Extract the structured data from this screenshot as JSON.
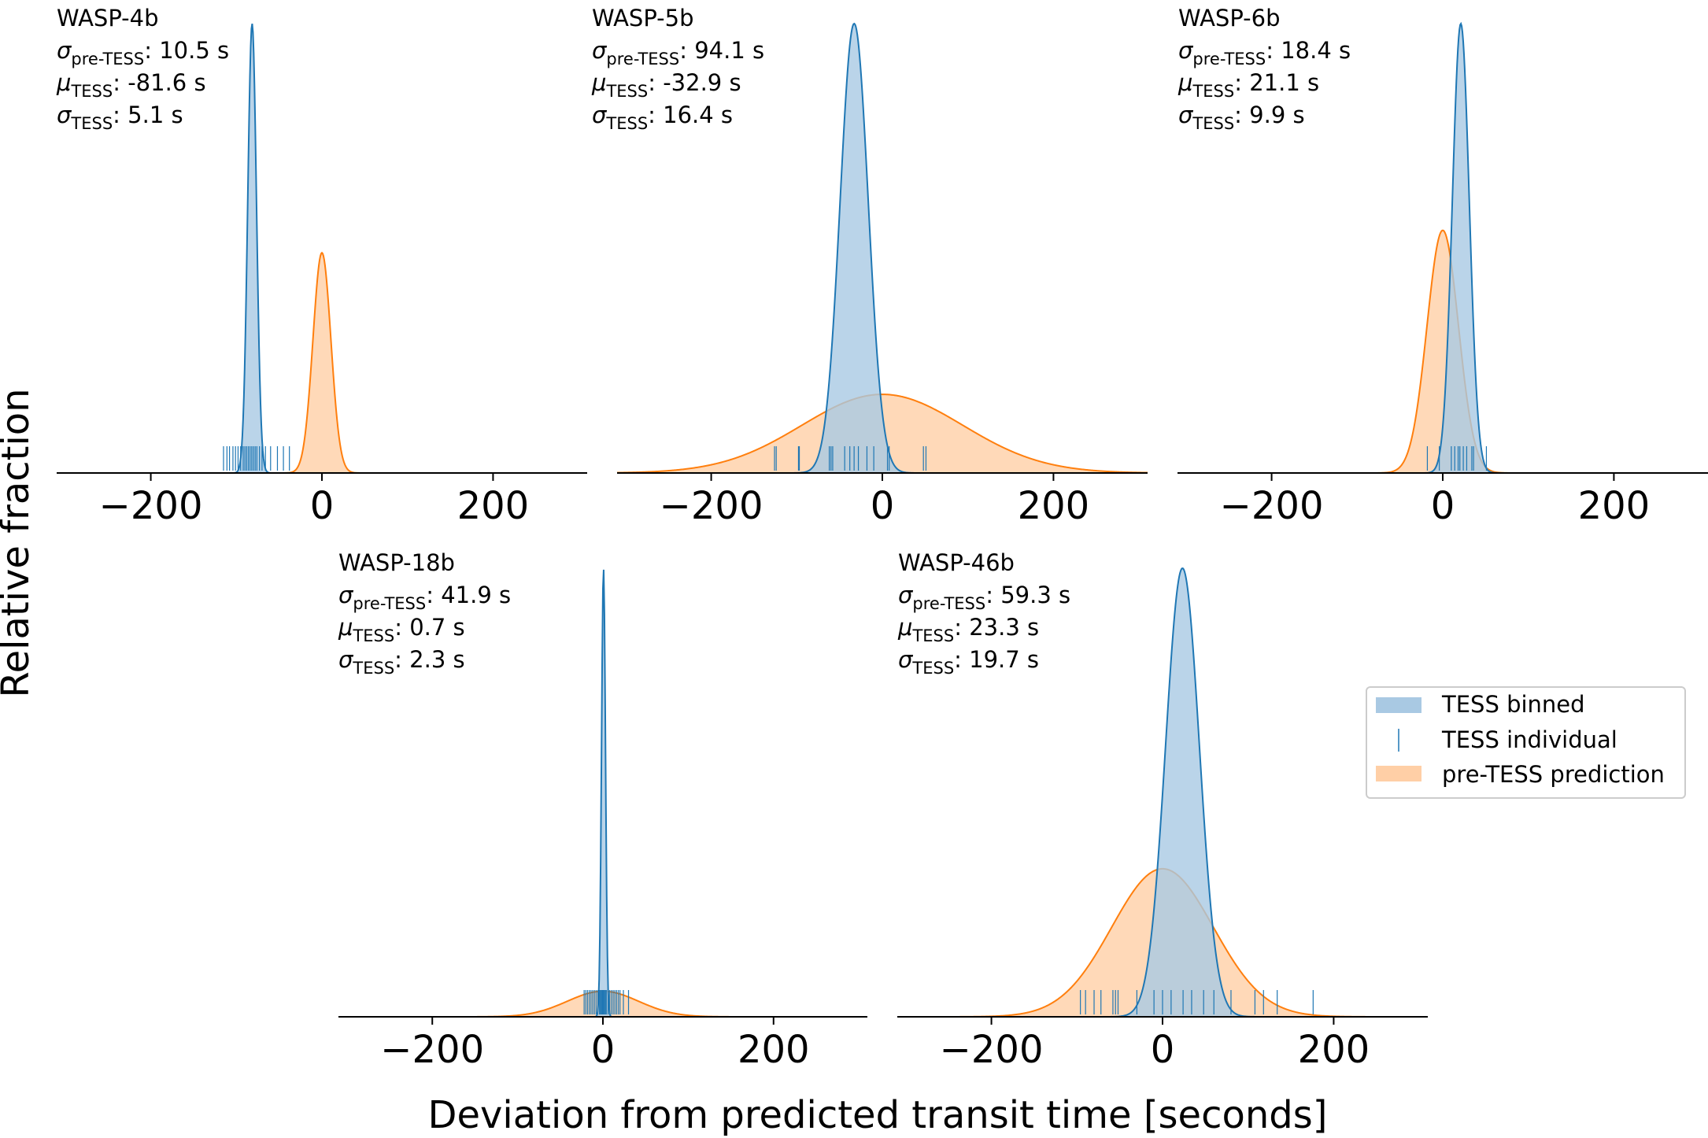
{
  "chart_data": {
    "type": "area",
    "title": "",
    "xlabel": "Deviation from predicted transit time [seconds]",
    "ylabel": "Relative fraction",
    "xlim": [
      -310,
      310
    ],
    "xticks": [
      -200,
      0,
      200
    ],
    "xtick_labels": [
      "−200",
      "0",
      "200"
    ],
    "grid": false,
    "annotation_labels": {
      "sigma_pre": {
        "symbol": "σ",
        "sub": "pre-TESS"
      },
      "mu_tess": {
        "symbol": "μ",
        "sub": "TESS"
      },
      "sigma_tess": {
        "symbol": "σ",
        "sub": "TESS"
      }
    },
    "legend": {
      "placement": "center-right",
      "entries": [
        {
          "label": "TESS binned",
          "kind": "fill",
          "color": "#1f77b4"
        },
        {
          "label": "TESS individual",
          "kind": "tick",
          "color": "#1f77b4"
        },
        {
          "label": "pre-TESS prediction",
          "kind": "fill",
          "color": "#ff7f0e"
        }
      ]
    },
    "colors": {
      "tess": "#1f77b4",
      "tess_fill": "#a9c9e3",
      "pre": "#ff7f0e",
      "pre_fill": "#ffcfa6"
    },
    "panels": [
      {
        "name": "WASP-4b",
        "sigma_pre_text": "10.5 s",
        "mu_tess_text": "-81.6 s",
        "sigma_tess_text": "5.1 s",
        "sigma_pre": 10.5,
        "mu_tess": -81.6,
        "sigma_tess": 5.1,
        "tess_peak": 1.0,
        "pre_peak": 0.49,
        "individual": [
          -115,
          -111,
          -108,
          -104,
          -101,
          -98,
          -95,
          -92,
          -90,
          -88,
          -86,
          -84,
          -82,
          -80,
          -78,
          -76,
          -73,
          -70,
          -66,
          -60,
          -52,
          -45,
          -38
        ]
      },
      {
        "name": "WASP-5b",
        "sigma_pre_text": "94.1 s",
        "mu_tess_text": "-32.9 s",
        "sigma_tess_text": "16.4 s",
        "sigma_pre": 94.1,
        "mu_tess": -32.9,
        "sigma_tess": 16.4,
        "tess_peak": 1.0,
        "pre_peak": 0.175,
        "individual": [
          -126,
          -124,
          -98,
          -97,
          -62,
          -60,
          -58,
          -44,
          -38,
          -33,
          -28,
          -18,
          -10,
          6,
          8,
          48,
          51
        ]
      },
      {
        "name": "WASP-6b",
        "sigma_pre_text": "18.4 s",
        "mu_tess_text": "21.1 s",
        "sigma_tess_text": "9.9 s",
        "sigma_pre": 18.4,
        "mu_tess": 21.1,
        "sigma_tess": 9.9,
        "tess_peak": 1.0,
        "pre_peak": 0.54,
        "individual": [
          -18,
          -4,
          10,
          14,
          18,
          20,
          24,
          28,
          34,
          36,
          51
        ]
      },
      {
        "name": "WASP-18b",
        "sigma_pre_text": "41.9 s",
        "mu_tess_text": "0.7 s",
        "sigma_tess_text": "2.3 s",
        "sigma_pre": 41.9,
        "mu_tess": 0.7,
        "sigma_tess": 2.3,
        "tess_peak": 1.0,
        "pre_peak": 0.057,
        "individual": [
          -22,
          -20,
          -18,
          -16,
          -14,
          -12,
          -10,
          -8,
          -6,
          -4,
          -3,
          -2,
          -1,
          0,
          1,
          2,
          3,
          4,
          6,
          8,
          10,
          12,
          14,
          16,
          18,
          20,
          24,
          30
        ]
      },
      {
        "name": "WASP-46b",
        "sigma_pre_text": "59.3 s",
        "mu_tess_text": "23.3 s",
        "sigma_tess_text": "19.7 s",
        "sigma_pre": 59.3,
        "mu_tess": 23.3,
        "sigma_tess": 19.7,
        "tess_peak": 1.0,
        "pre_peak": 0.33,
        "individual": [
          -96,
          -90,
          -80,
          -72,
          -58,
          -55,
          -52,
          -30,
          -10,
          0,
          10,
          24,
          34,
          48,
          60,
          80,
          108,
          118,
          134,
          176
        ]
      }
    ]
  }
}
